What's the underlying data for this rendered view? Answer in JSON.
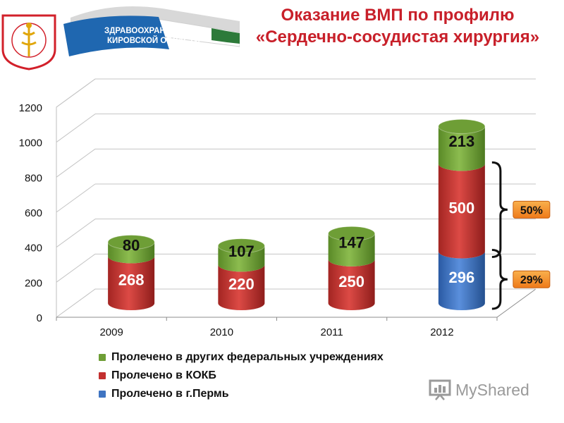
{
  "header": {
    "org_line1": "ЗДРАВООХРАНЕНИЕ",
    "org_line2": "КИРОВСКОЙ ОБЛАСТИ",
    "title_line1": "Оказание ВМП по профилю",
    "title_line2": "«Сердечно-сосудистая хирургия»"
  },
  "chart_data": {
    "type": "bar",
    "stacked": true,
    "three_d": true,
    "categories": [
      "2009",
      "2010",
      "2011",
      "2012"
    ],
    "series": [
      {
        "name": "Пролечено в г.Пермь",
        "values": [
          0,
          0,
          0,
          296
        ],
        "color": "#3f74c2"
      },
      {
        "name": "Пролечено в КОКБ",
        "values": [
          268,
          220,
          250,
          500
        ],
        "color": "#c3302f"
      },
      {
        "name": "Пролечено в других федеральных учреждениях",
        "values": [
          80,
          107,
          147,
          213
        ],
        "color": "#6e9e36"
      }
    ],
    "ylim": [
      0,
      1200
    ],
    "yticks": [
      "0",
      "200",
      "400",
      "600",
      "800",
      "1000",
      "1200"
    ],
    "grid": true,
    "legend_position": "bottom",
    "annotations": [
      {
        "text": "50%",
        "target_series": "Пролечено в КОКБ",
        "category": "2012"
      },
      {
        "text": "29%",
        "target_series": "Пролечено в г.Пермь",
        "category": "2012"
      }
    ],
    "annotation_color": "#f28a28"
  },
  "legend": {
    "items": [
      {
        "label": "Пролечено в других федеральных учреждениях",
        "color": "#6e9e36"
      },
      {
        "label": "Пролечено в КОКБ",
        "color": "#c3302f"
      },
      {
        "label": "Пролечено в г.Пермь",
        "color": "#3f74c2"
      }
    ]
  },
  "watermark": {
    "text": "MyShared"
  }
}
